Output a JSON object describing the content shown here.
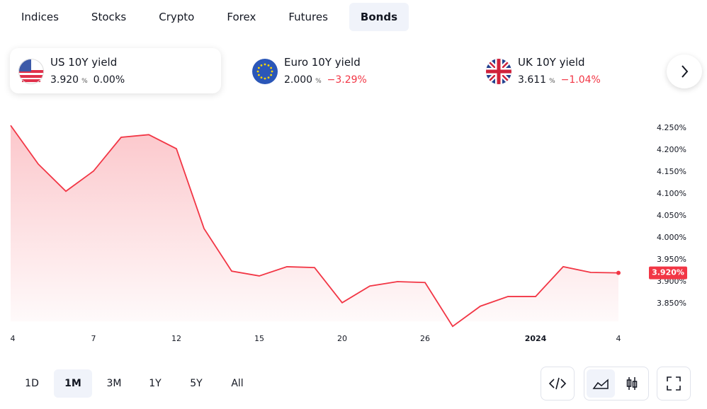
{
  "tabs": {
    "items": [
      "Indices",
      "Stocks",
      "Crypto",
      "Forex",
      "Futures",
      "Bonds"
    ],
    "active_index": 5
  },
  "tickers": [
    {
      "name": "US 10Y yield",
      "price": "3.920",
      "unit": "%",
      "change": "0.00%",
      "change_color": "#131722",
      "selected": true
    },
    {
      "name": "Euro 10Y yield",
      "price": "2.000",
      "unit": "%",
      "change": "−3.29%",
      "change_color": "#f23645",
      "selected": false
    },
    {
      "name": "UK 10Y yield",
      "price": "3.611",
      "unit": "%",
      "change": "−1.04%",
      "change_color": "#f23645",
      "selected": false
    }
  ],
  "chart_data": {
    "type": "area",
    "color": "#f23645",
    "categories": [
      "4",
      null,
      null,
      "7",
      null,
      null,
      "12",
      null,
      null,
      "15",
      null,
      null,
      "20",
      null,
      null,
      "26",
      null,
      null,
      null,
      "2024",
      null,
      null,
      "4"
    ],
    "values": [
      4.256,
      4.168,
      4.106,
      4.152,
      4.229,
      4.235,
      4.203,
      4.021,
      3.924,
      3.913,
      3.934,
      3.932,
      3.852,
      3.89,
      3.9,
      3.898,
      3.798,
      3.844,
      3.866,
      3.866,
      3.934,
      3.921,
      3.92
    ],
    "last_value_label": "3.920%",
    "ylim": [
      3.79,
      4.27
    ],
    "yticks": [
      {
        "value": 3.85,
        "label": "3.850%"
      },
      {
        "value": 3.9,
        "label": "3.900%"
      },
      {
        "value": 3.95,
        "label": "3.950%"
      },
      {
        "value": 4.0,
        "label": "4.000%"
      },
      {
        "value": 4.05,
        "label": "4.050%"
      },
      {
        "value": 4.1,
        "label": "4.100%"
      },
      {
        "value": 4.15,
        "label": "4.150%"
      },
      {
        "value": 4.2,
        "label": "4.200%"
      },
      {
        "value": 4.25,
        "label": "4.250%"
      }
    ]
  },
  "ranges": {
    "items": [
      "1D",
      "1M",
      "3M",
      "1Y",
      "5Y",
      "All"
    ],
    "active_index": 1
  }
}
